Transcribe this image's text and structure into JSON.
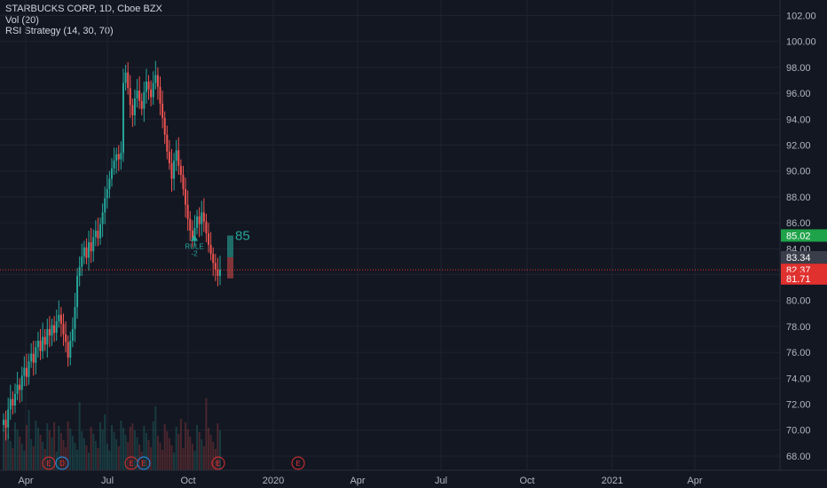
{
  "legend": {
    "symbol": "STARBUCKS CORP, 1D, Cboe BZX",
    "volume": "Vol (20)",
    "strategy": "RSI Strategy (14, 30, 70)"
  },
  "chart_data": {
    "type": "candlestick",
    "ylim": [
      66.9,
      103.2
    ],
    "y_ticks": [
      "68.00",
      "70.00",
      "72.00",
      "74.00",
      "76.00",
      "78.00",
      "80.00",
      "82.00",
      "84.00",
      "86.00",
      "88.00",
      "90.00",
      "92.00",
      "94.00",
      "96.00",
      "98.00",
      "100.00",
      "102.00"
    ],
    "x_ticks": [
      "Apr",
      "Jul",
      "Oct",
      "2020",
      "Apr",
      "Jul",
      "Oct",
      "2021",
      "Apr"
    ],
    "price_tags": [
      {
        "label": "85.02",
        "value": 85.02,
        "color": "#1fa34a"
      },
      {
        "label": "83.34",
        "value": 83.34,
        "color": "#3a3e4a"
      },
      {
        "label": "82.37",
        "value": 82.37,
        "color": "#e0312f"
      },
      {
        "label": "81.71",
        "value": 81.71,
        "color": "#e0312f"
      }
    ],
    "strategy_signal": {
      "text": "85",
      "label": "RULE",
      "sub": "-2"
    },
    "earnings_markers": [
      "E",
      "D",
      "E",
      "E",
      "E",
      "E"
    ],
    "candles_close": [
      70.8,
      70.2,
      71.6,
      72.4,
      71.9,
      72.8,
      73.5,
      73.1,
      74.2,
      74.8,
      74.1,
      75.3,
      75.9,
      75.2,
      76.4,
      76.9,
      76.1,
      77.2,
      76.6,
      77.8,
      77.3,
      78.1,
      77.5,
      78.4,
      78.9,
      78.2,
      77.4,
      76.8,
      75.6,
      76.9,
      77.8,
      79.5,
      81.9,
      82.6,
      83.4,
      84.1,
      83.3,
      84.5,
      83.8,
      84.9,
      85.4,
      84.8,
      85.9,
      86.8,
      87.9,
      88.6,
      89.4,
      90.2,
      90.8,
      91.3,
      90.9,
      91.4,
      96.8,
      97.6,
      96.4,
      95.1,
      94.3,
      95.6,
      96.2,
      95.4,
      94.8,
      96.1,
      96.9,
      96.3,
      95.7,
      96.8,
      97.4,
      96.5,
      95.2,
      94.1,
      92.8,
      91.5,
      90.6,
      89.4,
      90.8,
      91.6,
      90.4,
      89.7,
      88.6,
      87.4,
      86.3,
      85.4,
      84.8,
      85.6,
      86.5,
      85.9,
      86.8,
      86.1,
      85.2,
      84.3,
      83.6,
      82.9,
      82.4,
      81.9,
      82.37
    ]
  }
}
